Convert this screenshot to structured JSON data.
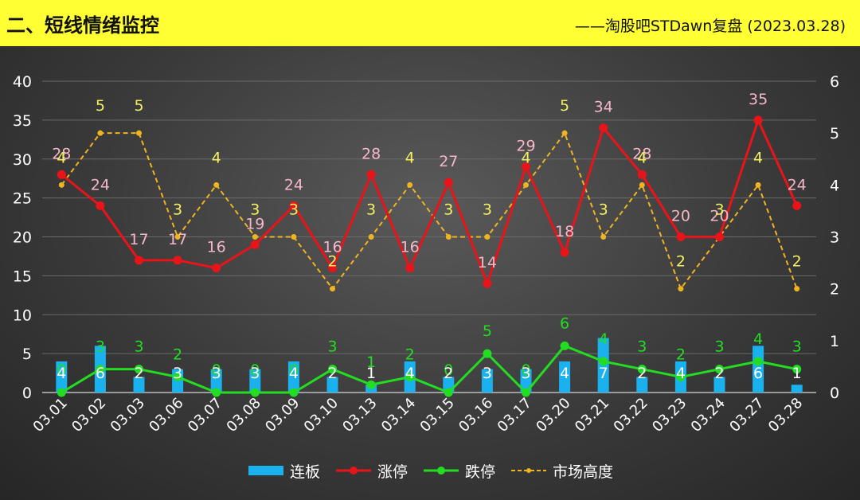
{
  "header": {
    "title": "二、短线情绪监控",
    "source": "——淘股吧STDawn复盘 (2023.03.28)"
  },
  "colors": {
    "board": "#1ab2ee",
    "limit_up": "#e8141a",
    "limit_down": "#22dd22",
    "height": "#f0b420",
    "limit_up_label": "#f5b6c8",
    "limit_down_label": "#22dd22",
    "height_label": "#f5f060",
    "board_label": "#ffffff"
  },
  "chart_data": {
    "type": "bar+line",
    "categories": [
      "03.01",
      "03.02",
      "03.03",
      "03.06",
      "03.07",
      "03.08",
      "03.09",
      "03.10",
      "03.13",
      "03.14",
      "03.15",
      "03.16",
      "03.17",
      "03.20",
      "03.21",
      "03.22",
      "03.23",
      "03.24",
      "03.27",
      "03.28"
    ],
    "y_left": {
      "min": 0,
      "max": 40,
      "ticks": [
        "0",
        "5",
        "10",
        "15",
        "20",
        "25",
        "30",
        "35",
        "40"
      ]
    },
    "y_right": {
      "min": 0,
      "max": 6,
      "ticks": [
        "0",
        "1",
        "2",
        "3",
        "4",
        "5",
        "6"
      ]
    },
    "series": [
      {
        "name": "连板",
        "type": "bar",
        "axis": "left",
        "values": [
          4,
          6,
          2,
          3,
          3,
          3,
          4,
          2,
          1,
          4,
          2,
          3,
          3,
          4,
          7,
          2,
          4,
          2,
          6,
          1
        ]
      },
      {
        "name": "涨停",
        "type": "line",
        "axis": "left",
        "values": [
          28,
          24,
          17,
          17,
          16,
          19,
          24,
          16,
          28,
          16,
          27,
          14,
          29,
          18,
          34,
          28,
          20,
          20,
          35,
          24
        ]
      },
      {
        "name": "跌停",
        "type": "line",
        "axis": "left",
        "values": [
          0,
          3,
          3,
          2,
          0,
          0,
          0,
          3,
          1,
          2,
          0,
          5,
          0,
          6,
          4,
          3,
          2,
          3,
          4,
          3
        ]
      },
      {
        "name": "市场高度",
        "type": "line-dashed",
        "axis": "right",
        "values": [
          4,
          5,
          5,
          3,
          4,
          3,
          3,
          2,
          3,
          4,
          3,
          3,
          4,
          5,
          3,
          4,
          2,
          3,
          4,
          2
        ]
      }
    ]
  },
  "legend": {
    "board": "连板",
    "limit_up": "涨停",
    "limit_down": "跌停",
    "height": "市场高度"
  }
}
